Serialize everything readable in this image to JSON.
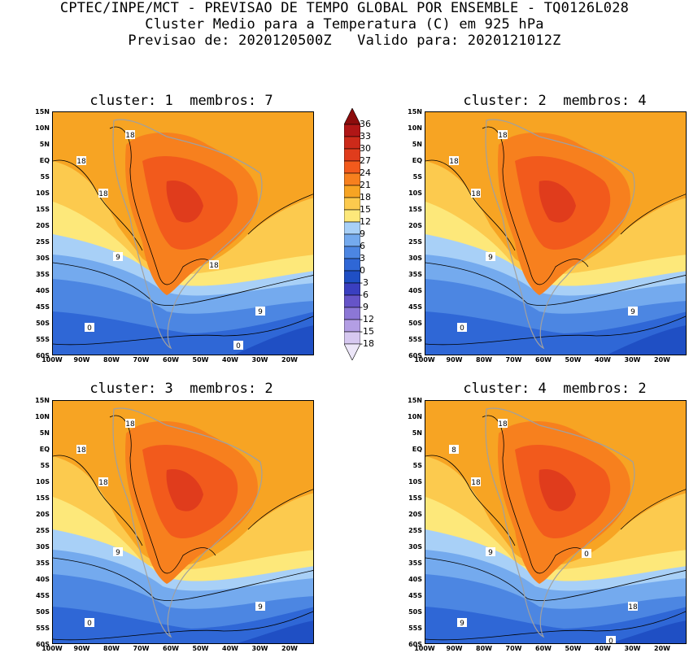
{
  "header": {
    "line1": "CPTEC/INPE/MCT - PREVISAO DE TEMPO GLOBAL POR ENSEMBLE - TQ0126L028",
    "line2": "Cluster Medio para a Temperatura (C) em 925 hPa",
    "line3": "Previsao de: 2020120500Z   Valido para: 2020121012Z"
  },
  "panels": [
    {
      "title": "cluster: 1  membros: 7",
      "contour_labels": [
        "18",
        "18",
        "18",
        "9",
        "9",
        "0",
        "0",
        "18"
      ]
    },
    {
      "title": "cluster: 2  membros: 4",
      "contour_labels": [
        "18",
        "18",
        "18",
        "9",
        "9",
        "0"
      ]
    },
    {
      "title": "cluster: 3  membros: 2",
      "contour_labels": [
        "18",
        "18",
        "18",
        "9",
        "9",
        "0"
      ]
    },
    {
      "title": "cluster: 4  membros: 2",
      "contour_labels": [
        "18",
        "8",
        "18",
        "9",
        "18",
        "9",
        "0",
        "0"
      ]
    }
  ],
  "axes": {
    "lat_labels": [
      "15N",
      "10N",
      "5N",
      "EQ",
      "5S",
      "10S",
      "15S",
      "20S",
      "25S",
      "30S",
      "35S",
      "40S",
      "45S",
      "50S",
      "55S",
      "60S"
    ],
    "lon_labels": [
      "100W",
      "90W",
      "80W",
      "70W",
      "60W",
      "50W",
      "40W",
      "30W",
      "20W"
    ]
  },
  "colorbar": {
    "levels": [
      "36",
      "33",
      "30",
      "27",
      "24",
      "21",
      "18",
      "15",
      "12",
      "9",
      "6",
      "3",
      "0",
      "-3",
      "-6",
      "-9",
      "-12",
      "-15",
      "-18"
    ],
    "colors": [
      "#8c0c0c",
      "#b01616",
      "#cc2a1a",
      "#e03c1c",
      "#f25a1c",
      "#f7801e",
      "#f7a423",
      "#fcca4e",
      "#fde87a",
      "#a8d0f7",
      "#74aaee",
      "#4c86e2",
      "#2f67d6",
      "#1f4fc4",
      "#3a3fc0",
      "#6654c8",
      "#8c77d6",
      "#b39ee4",
      "#d6c8f0",
      "#ece6f8"
    ],
    "level_semantics": "temperature-celsius"
  }
}
